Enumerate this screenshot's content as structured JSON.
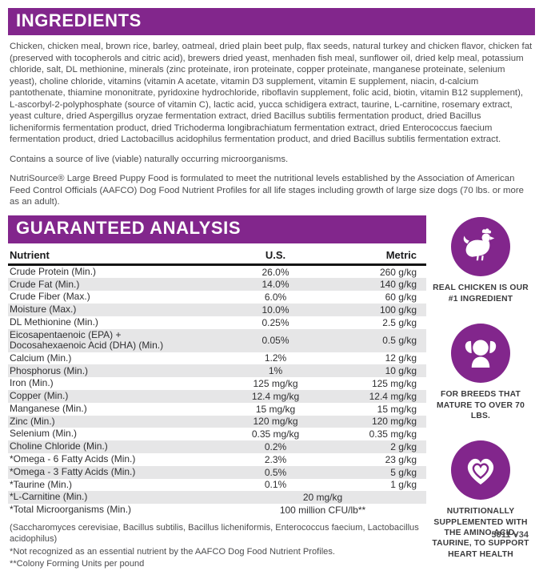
{
  "colors": {
    "purple": "#82268c",
    "row_alt": "#e6e6e7"
  },
  "ingredients": {
    "header": "INGREDIENTS",
    "body": "Chicken, chicken meal, brown rice, barley, oatmeal, dried plain beet pulp, flax seeds, natural turkey and chicken flavor, chicken fat (preserved with tocopherols and citric acid), brewers dried yeast, menhaden fish meal, sunflower oil, dried kelp meal, potassium chloride, salt, DL methionine, minerals (zinc proteinate, iron proteinate, copper proteinate, manganese proteinate, selenium yeast), choline chloride, vitamins (vitamin A acetate, vitamin D3 supplement, vitamin E supplement, niacin, d-calcium pantothenate, thiamine mononitrate, pyridoxine hydrochloride, riboflavin supplement, folic acid, biotin, vitamin B12 supplement), L-ascorbyl-2-polyphosphate (source of vitamin C), lactic acid, yucca schidigera extract, taurine, L-carnitine, rosemary extract, yeast culture, dried Aspergillus oryzae fermentation extract, dried Bacillus subtilis fermentation product, dried Bacillus licheniformis fermentation product, dried Trichoderma longibrachiatum fermentation extract, dried Enterococcus faecium fermentation product, dried Lactobacillus acidophilus fermentation product, and dried Bacillus subtilis fermentation extract.",
    "live_note": "Contains a source of live (viable) naturally occurring microorganisms.",
    "aafco_note": "NutriSource® Large Breed Puppy Food is formulated to meet the nutritional levels established by the Association of American Feed Control Officials (AAFCO) Dog Food Nutrient Profiles for all life stages including growth of large size dogs (70 lbs. or more as an adult)."
  },
  "analysis": {
    "header": "GUARANTEED ANALYSIS",
    "columns": [
      "Nutrient",
      "U.S.",
      "Metric"
    ],
    "rows": [
      {
        "nutrient": "Crude Protein (Min.)",
        "us": "26.0%",
        "metric": "260 g/kg"
      },
      {
        "nutrient": "Crude Fat (Min.)",
        "us": "14.0%",
        "metric": "140 g/kg"
      },
      {
        "nutrient": "Crude Fiber (Max.)",
        "us": "6.0%",
        "metric": "60 g/kg"
      },
      {
        "nutrient": "Moisture (Max.)",
        "us": "10.0%",
        "metric": "100 g/kg"
      },
      {
        "nutrient": "DL Methionine (Min.)",
        "us": "0.25%",
        "metric": "2.5 g/kg"
      },
      {
        "nutrient": "Eicosapentaenoic (EPA) +\nDocosahexaenoic Acid (DHA) (Min.)",
        "us": "0.05%",
        "metric": "0.5 g/kg"
      },
      {
        "nutrient": "Calcium (Min.)",
        "us": "1.2%",
        "metric": "12 g/kg"
      },
      {
        "nutrient": "Phosphorus (Min.)",
        "us": "1%",
        "metric": "10 g/kg"
      },
      {
        "nutrient": "Iron (Min.)",
        "us": "125 mg/kg",
        "metric": "125 mg/kg"
      },
      {
        "nutrient": "Copper (Min.)",
        "us": "12.4 mg/kg",
        "metric": "12.4 mg/kg"
      },
      {
        "nutrient": "Manganese (Min.)",
        "us": "15 mg/kg",
        "metric": "15 mg/kg"
      },
      {
        "nutrient": "Zinc (Min.)",
        "us": "120 mg/kg",
        "metric": "120 mg/kg"
      },
      {
        "nutrient": "Selenium (Min.)",
        "us": "0.35 mg/kg",
        "metric": "0.35 mg/kg"
      },
      {
        "nutrient": "Choline Chloride (Min.)",
        "us": "0.2%",
        "metric": "2 g/kg"
      },
      {
        "nutrient": "*Omega - 6 Fatty Acids (Min.)",
        "us": "2.3%",
        "metric": "23 g/kg"
      },
      {
        "nutrient": "*Omega - 3 Fatty Acids (Min.)",
        "us": "0.5%",
        "metric": "5 g/kg"
      },
      {
        "nutrient": "*Taurine (Min.)",
        "us": "0.1%",
        "metric": "1 g/kg"
      },
      {
        "nutrient": "*L-Carnitine (Min.)",
        "us": "20 mg/kg",
        "metric": "",
        "span": true
      },
      {
        "nutrient": "*Total Microorganisms (Min.)",
        "us": "100 million CFU/lb**",
        "metric": "",
        "span": true
      }
    ],
    "footnotes": [
      "(Saccharomyces cerevisiae, Bacillus subtilis, Bacillus licheniformis, Enterococcus faecium, Lactobacillus acidophilus)",
      "*Not recognized as an essential nutrient by the AAFCO Dog Food Nutrient Profiles.",
      "**Colony Forming Units per pound"
    ]
  },
  "badges": [
    {
      "icon": "chicken-icon",
      "label": "REAL CHICKEN IS OUR #1 INGREDIENT"
    },
    {
      "icon": "dog-icon",
      "label": "FOR BREEDS THAT MATURE TO OVER 70 LBS."
    },
    {
      "icon": "heart-icon",
      "label": "NUTRITIONALLY SUPPLEMENTED WITH THE AMINO ACID, TAURINE, TO SUPPORT HEART HEALTH"
    }
  ],
  "footer": {
    "code": "5011 V34"
  }
}
